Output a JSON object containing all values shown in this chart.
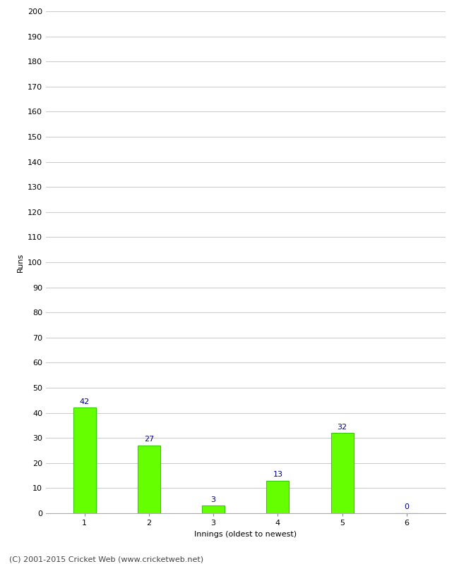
{
  "categories": [
    "1",
    "2",
    "3",
    "4",
    "5",
    "6"
  ],
  "values": [
    42,
    27,
    3,
    13,
    32,
    0
  ],
  "bar_color": "#66ff00",
  "bar_edge_color": "#33cc00",
  "label_color": "#000080",
  "xlabel": "Innings (oldest to newest)",
  "ylabel": "Runs",
  "ylim": [
    0,
    200
  ],
  "ytick_step": 10,
  "background_color": "#ffffff",
  "grid_color": "#cccccc",
  "footer": "(C) 2001-2015 Cricket Web (www.cricketweb.net)",
  "bar_width": 0.35,
  "label_fontsize": 8,
  "tick_fontsize": 8,
  "axis_label_fontsize": 8,
  "footer_fontsize": 8
}
